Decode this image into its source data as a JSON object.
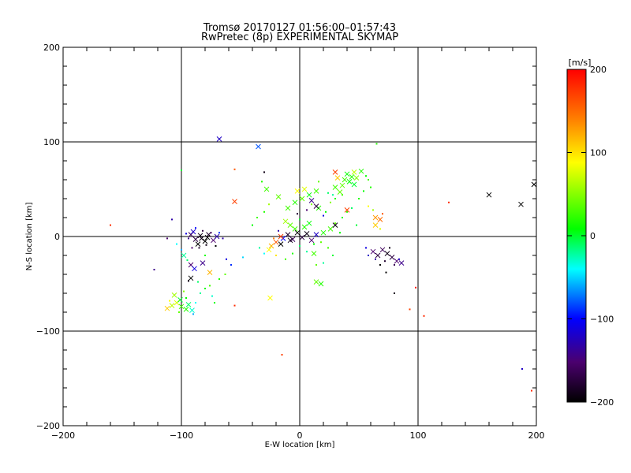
{
  "chart_data": {
    "type": "scatter",
    "title": "Tromsø 20170127 01:56:00–01:57:43",
    "subtitle": "RwPretec (8p) EXPERIMENTAL SKYMAP",
    "xlabel": "E-W location [km]",
    "ylabel": "N-S location [km]",
    "xlim": [
      -200,
      200
    ],
    "ylim": [
      -200,
      200
    ],
    "x_ticks": [
      -200,
      -100,
      0,
      100,
      200
    ],
    "y_ticks": [
      -200,
      -100,
      0,
      100,
      200
    ],
    "grid_lines": [
      -100,
      0,
      100
    ],
    "colorbar": {
      "label": "[m/s]",
      "range": [
        -200,
        200
      ],
      "ticks": [
        200,
        100,
        0,
        -100,
        -200
      ],
      "colormap": [
        "#000000",
        "#4b006e",
        "#0000ff",
        "#00ffff",
        "#00ff00",
        "#ffff00",
        "#ff8000",
        "#ff0000"
      ]
    },
    "markers": {
      "small": "meteor detections (dots)",
      "large": "meteor detections (crosses)"
    },
    "points": [
      [
        -68,
        103,
        -120,
        "x"
      ],
      [
        -35,
        95,
        -80,
        "x"
      ],
      [
        -55,
        71,
        160,
        "d"
      ],
      [
        -30,
        68,
        -190,
        "d"
      ],
      [
        -55,
        37,
        170,
        "x"
      ],
      [
        -160,
        12,
        180,
        "d"
      ],
      [
        -108,
        18,
        -130,
        "d"
      ],
      [
        -112,
        -2,
        -150,
        "d"
      ],
      [
        -123,
        -35,
        -140,
        "d"
      ],
      [
        -55,
        -73,
        180,
        "d"
      ],
      [
        -25,
        -65,
        90,
        "x"
      ],
      [
        -15,
        -125,
        170,
        "d"
      ],
      [
        126,
        36,
        180,
        "d"
      ],
      [
        160,
        44,
        -200,
        "x"
      ],
      [
        187,
        34,
        -200,
        "x"
      ],
      [
        198,
        55,
        -200,
        "x"
      ],
      [
        188,
        -140,
        -120,
        "d"
      ],
      [
        196,
        -163,
        180,
        "d"
      ],
      [
        105,
        -84,
        180,
        "d"
      ],
      [
        93,
        -77,
        170,
        "d"
      ],
      [
        98,
        -54,
        190,
        "d"
      ],
      [
        80,
        -60,
        -190,
        "d"
      ],
      [
        73,
        -38,
        -200,
        "d"
      ],
      [
        65,
        98,
        20,
        "d"
      ],
      [
        -100,
        70,
        0,
        "d"
      ],
      [
        -92,
        2,
        -160,
        "x"
      ],
      [
        -88,
        -3,
        -170,
        "x"
      ],
      [
        -84,
        1,
        -190,
        "x"
      ],
      [
        -80,
        -5,
        -200,
        "x"
      ],
      [
        -77,
        2,
        -180,
        "x"
      ],
      [
        -73,
        -4,
        -150,
        "x"
      ],
      [
        -70,
        0,
        -130,
        "x"
      ],
      [
        -90,
        5,
        -120,
        "x"
      ],
      [
        -86,
        -8,
        -200,
        "x"
      ],
      [
        -82,
        6,
        -170,
        "d"
      ],
      [
        -79,
        -9,
        -190,
        "d"
      ],
      [
        -75,
        4,
        -160,
        "d"
      ],
      [
        -94,
        -2,
        -140,
        "d"
      ],
      [
        -96,
        3,
        -110,
        "d"
      ],
      [
        -68,
        4,
        -90,
        "d"
      ],
      [
        -65,
        -2,
        -130,
        "d"
      ],
      [
        -85,
        -12,
        -180,
        "d"
      ],
      [
        -91,
        -12,
        -150,
        "d"
      ],
      [
        -71,
        -10,
        -200,
        "d"
      ],
      [
        -88,
        9,
        -100,
        "d"
      ],
      [
        -83,
        -2,
        -190,
        "x"
      ],
      [
        -78,
        -1,
        -200,
        "x"
      ],
      [
        -100,
        -14,
        -60,
        "d"
      ],
      [
        -104,
        -8,
        -40,
        "d"
      ],
      [
        -98,
        -20,
        -20,
        "x"
      ],
      [
        -95,
        -25,
        -10,
        "d"
      ],
      [
        -92,
        -30,
        -150,
        "x"
      ],
      [
        -89,
        -34,
        -110,
        "x"
      ],
      [
        -92,
        -44,
        -200,
        "x"
      ],
      [
        -94,
        -47,
        -190,
        "d"
      ],
      [
        -76,
        -38,
        120,
        "x"
      ],
      [
        -82,
        -28,
        -140,
        "x"
      ],
      [
        -62,
        -24,
        -110,
        "d"
      ],
      [
        -58,
        -30,
        -90,
        "d"
      ],
      [
        -48,
        -22,
        -50,
        "d"
      ],
      [
        -80,
        -20,
        20,
        "d"
      ],
      [
        -108,
        -73,
        70,
        "x"
      ],
      [
        -104,
        -70,
        80,
        "x"
      ],
      [
        -100,
        -74,
        30,
        "x"
      ],
      [
        -96,
        -77,
        20,
        "x"
      ],
      [
        -94,
        -72,
        -10,
        "x"
      ],
      [
        -101,
        -67,
        0,
        "x"
      ],
      [
        -106,
        -62,
        60,
        "x"
      ],
      [
        -112,
        -76,
        110,
        "x"
      ],
      [
        -91,
        -78,
        -30,
        "x"
      ],
      [
        -88,
        -70,
        -40,
        "d"
      ],
      [
        -96,
        -65,
        10,
        "d"
      ],
      [
        -84,
        -60,
        -20,
        "d"
      ],
      [
        -80,
        -55,
        10,
        "d"
      ],
      [
        -76,
        -52,
        30,
        "d"
      ],
      [
        -98,
        -58,
        50,
        "d"
      ],
      [
        -90,
        -82,
        -60,
        "d"
      ],
      [
        -102,
        -80,
        40,
        "d"
      ],
      [
        -86,
        -48,
        -10,
        "d"
      ],
      [
        -74,
        -63,
        -30,
        "d"
      ],
      [
        -68,
        -45,
        20,
        "d"
      ],
      [
        -63,
        -40,
        40,
        "d"
      ],
      [
        -72,
        -70,
        10,
        "d"
      ],
      [
        -110,
        -68,
        90,
        "d"
      ],
      [
        -10,
        2,
        -180,
        "x"
      ],
      [
        -6,
        -3,
        -160,
        "x"
      ],
      [
        -2,
        4,
        -200,
        "x"
      ],
      [
        2,
        -1,
        -170,
        "x"
      ],
      [
        6,
        3,
        -190,
        "x"
      ],
      [
        10,
        -4,
        -150,
        "x"
      ],
      [
        14,
        2,
        -120,
        "x"
      ],
      [
        -14,
        -2,
        -100,
        "x"
      ],
      [
        -18,
        6,
        -130,
        "d"
      ],
      [
        -4,
        8,
        30,
        "x"
      ],
      [
        4,
        10,
        20,
        "x"
      ],
      [
        8,
        14,
        10,
        "x"
      ],
      [
        -8,
        12,
        40,
        "x"
      ],
      [
        -12,
        16,
        60,
        "x"
      ],
      [
        0,
        18,
        0,
        "d"
      ],
      [
        -16,
        0,
        170,
        "x"
      ],
      [
        -20,
        -6,
        160,
        "x"
      ],
      [
        -24,
        -10,
        120,
        "x"
      ],
      [
        -26,
        -14,
        90,
        "x"
      ],
      [
        -22,
        -2,
        140,
        "d"
      ],
      [
        -30,
        -18,
        -40,
        "d"
      ],
      [
        -34,
        -12,
        -20,
        "d"
      ],
      [
        -20,
        -20,
        100,
        "d"
      ],
      [
        -12,
        -24,
        30,
        "d"
      ],
      [
        -6,
        -18,
        20,
        "d"
      ],
      [
        0,
        -10,
        -10,
        "d"
      ],
      [
        6,
        -16,
        -20,
        "d"
      ],
      [
        12,
        -8,
        10,
        "d"
      ],
      [
        18,
        -6,
        40,
        "d"
      ],
      [
        24,
        -12,
        30,
        "d"
      ],
      [
        20,
        4,
        20,
        "x"
      ],
      [
        26,
        8,
        30,
        "x"
      ],
      [
        30,
        14,
        40,
        "d"
      ],
      [
        36,
        20,
        10,
        "d"
      ],
      [
        40,
        26,
        20,
        "d"
      ],
      [
        44,
        30,
        -10,
        "d"
      ],
      [
        34,
        4,
        10,
        "d"
      ],
      [
        28,
        -20,
        0,
        "d"
      ],
      [
        20,
        -28,
        -20,
        "d"
      ],
      [
        14,
        -30,
        40,
        "d"
      ],
      [
        -10,
        30,
        30,
        "x"
      ],
      [
        -4,
        36,
        20,
        "x"
      ],
      [
        2,
        40,
        40,
        "x"
      ],
      [
        8,
        44,
        10,
        "x"
      ],
      [
        14,
        48,
        30,
        "x"
      ],
      [
        -2,
        48,
        90,
        "x"
      ],
      [
        4,
        50,
        80,
        "x"
      ],
      [
        10,
        34,
        50,
        "d"
      ],
      [
        16,
        30,
        20,
        "x"
      ],
      [
        22,
        26,
        10,
        "d"
      ],
      [
        -18,
        42,
        40,
        "x"
      ],
      [
        -26,
        34,
        60,
        "d"
      ],
      [
        -30,
        26,
        20,
        "d"
      ],
      [
        -36,
        20,
        30,
        "d"
      ],
      [
        -40,
        12,
        10,
        "d"
      ],
      [
        -28,
        50,
        30,
        "x"
      ],
      [
        -32,
        58,
        20,
        "d"
      ],
      [
        16,
        58,
        40,
        "d"
      ],
      [
        30,
        40,
        20,
        "d"
      ],
      [
        36,
        44,
        30,
        "d"
      ],
      [
        12,
        -18,
        30,
        "x"
      ],
      [
        14,
        -48,
        40,
        "x"
      ],
      [
        18,
        -50,
        20,
        "x"
      ],
      [
        10,
        38,
        -140,
        "x"
      ],
      [
        14,
        32,
        -170,
        "x"
      ],
      [
        20,
        22,
        -110,
        "d"
      ],
      [
        6,
        28,
        -150,
        "d"
      ],
      [
        -2,
        24,
        -180,
        "d"
      ],
      [
        30,
        12,
        -200,
        "x"
      ],
      [
        -16,
        -8,
        -200,
        "x"
      ],
      [
        -8,
        -4,
        -190,
        "x"
      ],
      [
        40,
        66,
        10,
        "x"
      ],
      [
        44,
        63,
        20,
        "x"
      ],
      [
        38,
        60,
        30,
        "x"
      ],
      [
        42,
        58,
        10,
        "x"
      ],
      [
        46,
        55,
        0,
        "x"
      ],
      [
        36,
        54,
        40,
        "x"
      ],
      [
        48,
        62,
        50,
        "x"
      ],
      [
        52,
        69,
        20,
        "x"
      ],
      [
        56,
        64,
        10,
        "d"
      ],
      [
        58,
        60,
        30,
        "d"
      ],
      [
        34,
        47,
        40,
        "x"
      ],
      [
        30,
        52,
        30,
        "x"
      ],
      [
        60,
        52,
        20,
        "d"
      ],
      [
        54,
        48,
        10,
        "d"
      ],
      [
        28,
        44,
        -20,
        "d"
      ],
      [
        24,
        46,
        -10,
        "d"
      ],
      [
        46,
        68,
        70,
        "x"
      ],
      [
        32,
        62,
        110,
        "x"
      ],
      [
        62,
        28,
        60,
        "d"
      ],
      [
        64,
        12,
        110,
        "x"
      ],
      [
        64,
        20,
        130,
        "x"
      ],
      [
        58,
        32,
        90,
        "d"
      ],
      [
        40,
        28,
        170,
        "x"
      ],
      [
        30,
        68,
        170,
        "x"
      ],
      [
        26,
        36,
        50,
        "d"
      ],
      [
        50,
        40,
        20,
        "d"
      ],
      [
        48,
        12,
        0,
        "d"
      ],
      [
        68,
        18,
        150,
        "x"
      ],
      [
        70,
        24,
        160,
        "d"
      ],
      [
        68,
        8,
        80,
        "d"
      ],
      [
        62,
        -16,
        -150,
        "x"
      ],
      [
        66,
        -20,
        -170,
        "x"
      ],
      [
        70,
        -14,
        -160,
        "x"
      ],
      [
        74,
        -18,
        -190,
        "x"
      ],
      [
        78,
        -22,
        -170,
        "x"
      ],
      [
        82,
        -26,
        -150,
        "x"
      ],
      [
        86,
        -28,
        -140,
        "x"
      ],
      [
        64,
        -24,
        -130,
        "d"
      ],
      [
        58,
        -20,
        -120,
        "d"
      ],
      [
        56,
        -12,
        -110,
        "d"
      ],
      [
        72,
        -26,
        -180,
        "d"
      ],
      [
        80,
        -30,
        -160,
        "d"
      ],
      [
        84,
        -24,
        -120,
        "d"
      ],
      [
        76,
        -12,
        -190,
        "d"
      ],
      [
        68,
        -30,
        -200,
        "d"
      ]
    ]
  }
}
